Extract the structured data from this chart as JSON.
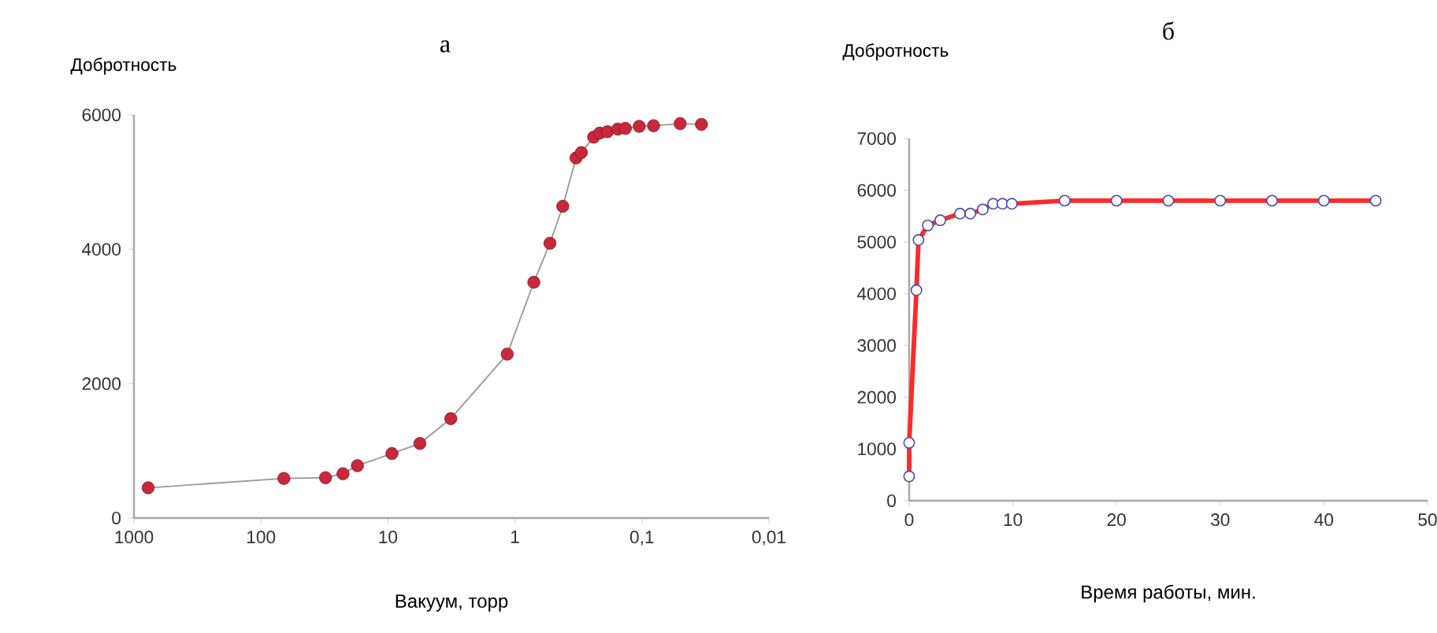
{
  "chart_data": [
    {
      "type": "line",
      "title": "а",
      "xlabel": "Вакуум, торр",
      "ylabel": "Добротность",
      "log": "x",
      "marker": "circle",
      "grid": false,
      "x": [
        773,
        66,
        31,
        22.6,
        17.4,
        9.3,
        5.6,
        3.2,
        1.15,
        0.71,
        0.53,
        0.42,
        0.33,
        0.3,
        0.24,
        0.215,
        0.187,
        0.155,
        0.135,
        0.105,
        0.081,
        0.05,
        0.034
      ],
      "series": [
        {
          "color": "#c8283a",
          "values": [
            450,
            590,
            600,
            660,
            780,
            960,
            1110,
            1480,
            2440,
            3510,
            4090,
            4640,
            5360,
            5440,
            5670,
            5730,
            5750,
            5790,
            5800,
            5830,
            5840,
            5870,
            5860
          ]
        }
      ],
      "xlim": [
        1000,
        0.01
      ],
      "ylim": [
        0,
        6000
      ],
      "xticks": [
        {
          "value": 1000,
          "label": "1000"
        },
        {
          "value": 100,
          "label": "100"
        },
        {
          "value": 10,
          "label": "10"
        },
        {
          "value": 1,
          "label": "1"
        },
        {
          "value": 0.1,
          "label": "0,1"
        },
        {
          "value": 0.01,
          "label": "0,01"
        }
      ],
      "yticks": [
        0,
        2000,
        4000,
        6000
      ]
    },
    {
      "type": "line",
      "title": "б",
      "xlabel": "Время работы, мин.",
      "ylabel": "Добротность",
      "marker": "circle",
      "grid": false,
      "x": [
        0,
        0,
        0.7,
        0.9,
        1.8,
        3,
        4.9,
        5.9,
        7.1,
        8.1,
        9,
        9.9,
        15,
        20,
        25,
        30,
        35,
        40,
        45
      ],
      "series": [
        {
          "color": "#ff2a2a",
          "values": [
            470,
            1120,
            4070,
            5040,
            5320,
            5420,
            5550,
            5550,
            5630,
            5740,
            5740,
            5740,
            5800,
            5800,
            5800,
            5800,
            5800,
            5800,
            5800
          ]
        }
      ],
      "xlim": [
        0,
        50
      ],
      "ylim": [
        0,
        7000
      ],
      "xticks": [
        0,
        10,
        20,
        30,
        40,
        50
      ],
      "yticks": [
        0,
        1000,
        2000,
        3000,
        4000,
        5000,
        6000,
        7000
      ]
    }
  ]
}
